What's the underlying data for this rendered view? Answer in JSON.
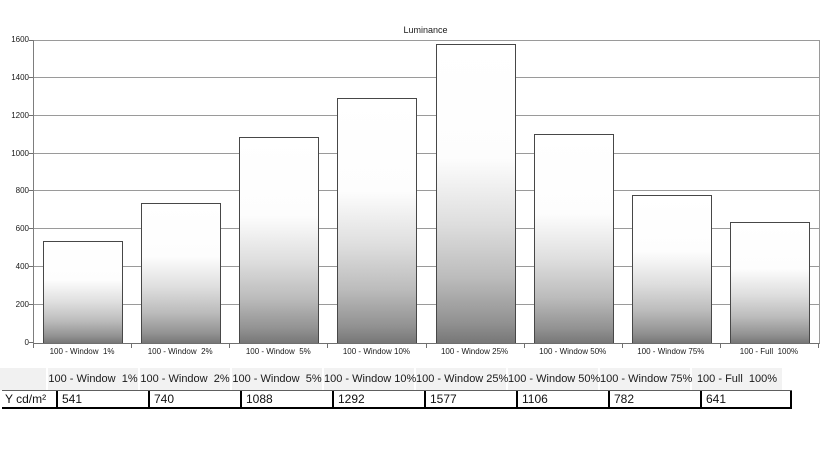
{
  "chart_data": {
    "type": "bar",
    "title": "Luminance",
    "categories": [
      "100 - Window  1%",
      "100 - Window  2%",
      "100 - Window  5%",
      "100 - Window 10%",
      "100 - Window 25%",
      "100 - Window 50%",
      "100 - Window 75%",
      "100 - Full  100%"
    ],
    "values": [
      541,
      740,
      1088,
      1292,
      1577,
      1106,
      782,
      641
    ],
    "xlabel": "",
    "ylabel": "",
    "ylim": [
      0,
      1600
    ],
    "yticks": [
      0,
      200,
      400,
      600,
      800,
      1000,
      1200,
      1400,
      1600
    ],
    "grid": true,
    "legend": false,
    "bar_fill": "vertical gradient white to gray",
    "bar_border_color": "#474747"
  },
  "table": {
    "row_label": "Y cd/m²",
    "columns": [
      "100 - Window  1%",
      "100 - Window  2%",
      "100 - Window  5%",
      "100 - Window 10%",
      "100 - Window 25%",
      "100 - Window 50%",
      "100 - Window 75%",
      "100 - Full  100%"
    ],
    "values": [
      "541",
      "740",
      "1088",
      "1292",
      "1577",
      "1106",
      "782",
      "641"
    ]
  },
  "colors": {
    "background": "#ffffff",
    "gridline": "#9a9a9a",
    "axis": "#6f6f6f",
    "bar_gradient_top": "#ffffff",
    "bar_gradient_bottom": "#777777",
    "table_header_bg": "#f2f2f2",
    "table_border": "#000000",
    "text": "#1a1a1a"
  }
}
